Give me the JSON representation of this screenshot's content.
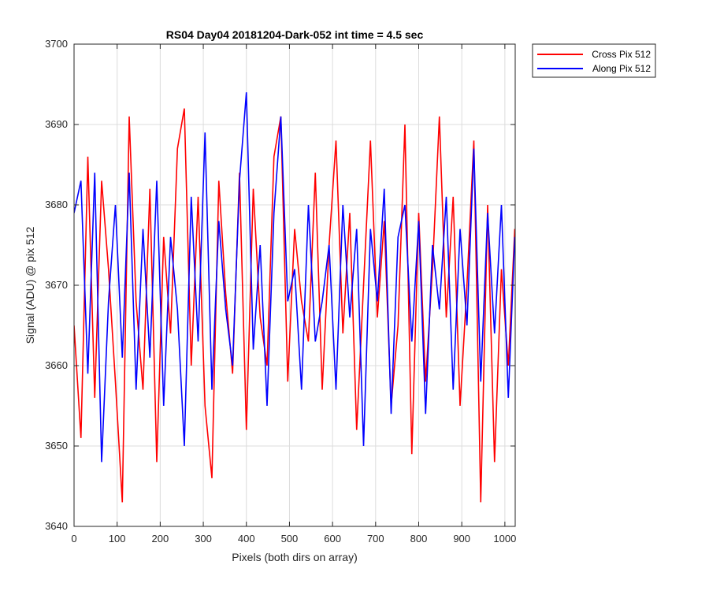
{
  "chart_data": {
    "type": "line",
    "title": "RS04 Day04 20181204-Dark-052 int time = 4.5 sec",
    "xlabel": "Pixels (both dirs on array)",
    "ylabel": "Signal (ADU) @ pix 512",
    "xlim": [
      0,
      1024
    ],
    "ylim": [
      3640,
      3700
    ],
    "xticks": [
      0,
      100,
      200,
      300,
      400,
      500,
      600,
      700,
      800,
      900,
      1000
    ],
    "yticks": [
      3640,
      3650,
      3660,
      3670,
      3680,
      3690,
      3700
    ],
    "grid": true,
    "legend_position": "outside-top-right",
    "series": [
      {
        "name": "Cross Pix 512",
        "color": "#ff0000",
        "x": [
          0,
          16,
          32,
          48,
          64,
          80,
          96,
          112,
          128,
          144,
          160,
          176,
          192,
          208,
          224,
          240,
          256,
          272,
          288,
          304,
          320,
          336,
          352,
          368,
          384,
          400,
          416,
          432,
          448,
          464,
          480,
          496,
          512,
          528,
          544,
          560,
          576,
          592,
          608,
          624,
          640,
          656,
          672,
          688,
          704,
          720,
          736,
          752,
          768,
          784,
          800,
          816,
          832,
          848,
          864,
          880,
          896,
          912,
          928,
          944,
          960,
          976,
          992,
          1008,
          1023
        ],
        "values": [
          3665,
          3651,
          3686,
          3656,
          3683,
          3672,
          3658,
          3643,
          3691,
          3668,
          3657,
          3682,
          3648,
          3676,
          3664,
          3687,
          3692,
          3660,
          3681,
          3655,
          3646,
          3683,
          3669,
          3659,
          3684,
          3652,
          3682,
          3666,
          3660,
          3686,
          3691,
          3658,
          3677,
          3668,
          3663,
          3684,
          3657,
          3675,
          3688,
          3664,
          3679,
          3652,
          3670,
          3688,
          3666,
          3678,
          3655,
          3665,
          3690,
          3649,
          3679,
          3658,
          3672,
          3691,
          3666,
          3681,
          3655,
          3670,
          3688,
          3643,
          3680,
          3648,
          3672,
          3660,
          3677
        ]
      },
      {
        "name": "Along Pix 512",
        "color": "#0000ff",
        "x": [
          0,
          16,
          32,
          48,
          64,
          80,
          96,
          112,
          128,
          144,
          160,
          176,
          192,
          208,
          224,
          240,
          256,
          272,
          288,
          304,
          320,
          336,
          352,
          368,
          384,
          400,
          416,
          432,
          448,
          464,
          480,
          496,
          512,
          528,
          544,
          560,
          576,
          592,
          608,
          624,
          640,
          656,
          672,
          688,
          704,
          720,
          736,
          752,
          768,
          784,
          800,
          816,
          832,
          848,
          864,
          880,
          896,
          912,
          928,
          944,
          960,
          976,
          992,
          1008,
          1023
        ],
        "values": [
          3679,
          3683,
          3659,
          3684,
          3648,
          3668,
          3680,
          3661,
          3684,
          3657,
          3677,
          3661,
          3683,
          3655,
          3676,
          3667,
          3650,
          3681,
          3663,
          3689,
          3657,
          3678,
          3667,
          3660,
          3683,
          3694,
          3662,
          3675,
          3655,
          3679,
          3691,
          3668,
          3672,
          3657,
          3680,
          3663,
          3668,
          3675,
          3657,
          3680,
          3666,
          3677,
          3650,
          3677,
          3668,
          3682,
          3654,
          3676,
          3680,
          3663,
          3678,
          3654,
          3675,
          3667,
          3681,
          3657,
          3677,
          3665,
          3687,
          3658,
          3679,
          3664,
          3680,
          3656,
          3676
        ]
      }
    ]
  }
}
